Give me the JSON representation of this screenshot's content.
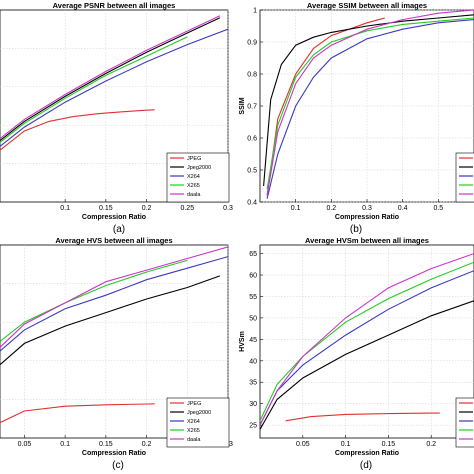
{
  "chart_data": [
    {
      "id": "a",
      "type": "line",
      "title": "Average PSNR between all images",
      "xlabel": "Compression Ratio",
      "ylabel": "",
      "panel_label": "(a)",
      "xlim": [
        0.02,
        0.3
      ],
      "ylim": [
        0,
        1
      ],
      "xticks": [
        "0.1",
        "0.15",
        "0.2",
        "0.25",
        "0.3"
      ],
      "xtick_values": [
        0.1,
        0.15,
        0.2,
        0.25,
        0.3
      ],
      "yticks": [],
      "grid": true,
      "legend": "bottom-right",
      "series": [
        {
          "name": "JPEG",
          "color": "#e03030",
          "x": [
            0.02,
            0.05,
            0.08,
            0.11,
            0.14,
            0.17,
            0.2,
            0.21
          ],
          "y": [
            0.27,
            0.37,
            0.42,
            0.445,
            0.46,
            0.47,
            0.478,
            0.48
          ]
        },
        {
          "name": "Jpeg2000",
          "color": "#000000",
          "x": [
            0.02,
            0.05,
            0.1,
            0.15,
            0.2,
            0.25,
            0.29
          ],
          "y": [
            0.32,
            0.42,
            0.55,
            0.67,
            0.78,
            0.88,
            0.96
          ]
        },
        {
          "name": "X264",
          "color": "#3a3ac0",
          "x": [
            0.02,
            0.05,
            0.1,
            0.15,
            0.2,
            0.25,
            0.3
          ],
          "y": [
            0.29,
            0.39,
            0.52,
            0.63,
            0.73,
            0.82,
            0.9
          ]
        },
        {
          "name": "X265",
          "color": "#22cc22",
          "x": [
            0.02,
            0.05,
            0.1,
            0.15,
            0.2,
            0.25
          ],
          "y": [
            0.31,
            0.41,
            0.54,
            0.66,
            0.76,
            0.86
          ]
        },
        {
          "name": "daala",
          "color": "#cc33cc",
          "x": [
            0.02,
            0.05,
            0.1,
            0.15,
            0.2,
            0.25,
            0.29
          ],
          "y": [
            0.33,
            0.43,
            0.56,
            0.68,
            0.79,
            0.89,
            0.97
          ]
        }
      ]
    },
    {
      "id": "b",
      "type": "line",
      "title": "Average SSIM between all images",
      "xlabel": "Compression Ratio",
      "ylabel": "SSIM",
      "panel_label": "(b)",
      "xlim": [
        0,
        0.6
      ],
      "ylim": [
        0.4,
        1
      ],
      "xticks": [
        "0.1",
        "0.2",
        "0.3",
        "0.4",
        "0.5"
      ],
      "xtick_values": [
        0.1,
        0.2,
        0.3,
        0.4,
        0.5
      ],
      "yticks": [
        "0.4",
        "0.5",
        "0.6",
        "0.7",
        "0.8",
        "0.9",
        "1"
      ],
      "ytick_values": [
        0.4,
        0.5,
        0.6,
        0.7,
        0.8,
        0.9,
        1.0
      ],
      "grid": true,
      "legend": "bottom-right",
      "series": [
        {
          "name": "JPEG",
          "color": "#e03030",
          "x": [
            0.02,
            0.05,
            0.1,
            0.15,
            0.2,
            0.3,
            0.35
          ],
          "y": [
            0.42,
            0.66,
            0.8,
            0.88,
            0.92,
            0.96,
            0.975
          ]
        },
        {
          "name": "Jpeg2000",
          "color": "#000000",
          "x": [
            0.01,
            0.03,
            0.06,
            0.1,
            0.15,
            0.2,
            0.3,
            0.4,
            0.5,
            0.6
          ],
          "y": [
            0.45,
            0.72,
            0.83,
            0.89,
            0.915,
            0.93,
            0.95,
            0.965,
            0.975,
            0.985
          ]
        },
        {
          "name": "X264",
          "color": "#3a3ac0",
          "x": [
            0.02,
            0.05,
            0.1,
            0.15,
            0.2,
            0.3,
            0.4,
            0.5,
            0.6
          ],
          "y": [
            0.41,
            0.55,
            0.7,
            0.79,
            0.85,
            0.91,
            0.94,
            0.96,
            0.97
          ]
        },
        {
          "name": "X265",
          "color": "#22cc22",
          "x": [
            0.02,
            0.05,
            0.1,
            0.15,
            0.2,
            0.3,
            0.4,
            0.5,
            0.6
          ],
          "y": [
            0.44,
            0.64,
            0.79,
            0.86,
            0.9,
            0.935,
            0.955,
            0.965,
            0.975
          ]
        },
        {
          "name": "daala",
          "color": "#cc33cc",
          "x": [
            0.02,
            0.05,
            0.1,
            0.15,
            0.2,
            0.3,
            0.4,
            0.5,
            0.6
          ],
          "y": [
            0.42,
            0.62,
            0.77,
            0.85,
            0.89,
            0.94,
            0.97,
            0.99,
            1.0
          ]
        }
      ]
    },
    {
      "id": "c",
      "type": "line",
      "title": "Average HVS between all images",
      "xlabel": "Compression Ratio",
      "ylabel": "",
      "panel_label": "(c)",
      "xlim": [
        0.02,
        0.3
      ],
      "ylim": [
        0,
        1
      ],
      "xticks": [
        "0.05",
        "0.1",
        "0.15",
        "0.2",
        "0.25",
        "0.3"
      ],
      "xtick_values": [
        0.05,
        0.1,
        0.15,
        0.2,
        0.25,
        0.3
      ],
      "yticks": [],
      "grid": true,
      "legend": "bottom-right",
      "series": [
        {
          "name": "JPEG",
          "color": "#e03030",
          "x": [
            0.02,
            0.05,
            0.1,
            0.15,
            0.2,
            0.21
          ],
          "y": [
            0.08,
            0.14,
            0.165,
            0.172,
            0.176,
            0.177
          ]
        },
        {
          "name": "Jpeg2000",
          "color": "#000000",
          "x": [
            0.02,
            0.05,
            0.1,
            0.15,
            0.2,
            0.25,
            0.29
          ],
          "y": [
            0.38,
            0.49,
            0.58,
            0.65,
            0.72,
            0.78,
            0.84
          ]
        },
        {
          "name": "X264",
          "color": "#3a3ac0",
          "x": [
            0.02,
            0.05,
            0.1,
            0.15,
            0.2,
            0.25,
            0.3
          ],
          "y": [
            0.45,
            0.56,
            0.67,
            0.74,
            0.82,
            0.88,
            0.94
          ]
        },
        {
          "name": "X265",
          "color": "#22cc22",
          "x": [
            0.02,
            0.05,
            0.1,
            0.15,
            0.2,
            0.25
          ],
          "y": [
            0.5,
            0.6,
            0.7,
            0.79,
            0.86,
            0.92
          ]
        },
        {
          "name": "daala",
          "color": "#cc33cc",
          "x": [
            0.02,
            0.05,
            0.1,
            0.15,
            0.2,
            0.25,
            0.3
          ],
          "y": [
            0.47,
            0.59,
            0.7,
            0.81,
            0.87,
            0.93,
            0.99
          ]
        }
      ]
    },
    {
      "id": "d",
      "type": "line",
      "title": "Average HVSm between all images",
      "xlabel": "Compression Ratio",
      "ylabel": "HVSm",
      "panel_label": "(d)",
      "xlim": [
        0,
        0.25
      ],
      "ylim": [
        22,
        67
      ],
      "xticks": [
        "0.05",
        "0.1",
        "0.15",
        "0.2"
      ],
      "xtick_values": [
        0.05,
        0.1,
        0.15,
        0.2
      ],
      "yticks": [
        "25",
        "30",
        "35",
        "40",
        "45",
        "50",
        "55",
        "60",
        "65"
      ],
      "ytick_values": [
        25,
        30,
        35,
        40,
        45,
        50,
        55,
        60,
        65
      ],
      "grid": true,
      "legend": "bottom-right",
      "series": [
        {
          "name": "JPEG",
          "color": "#e03030",
          "x": [
            0.03,
            0.06,
            0.1,
            0.15,
            0.2,
            0.21
          ],
          "y": [
            26,
            27,
            27.5,
            27.7,
            27.8,
            27.8
          ]
        },
        {
          "name": "Jpeg2000",
          "color": "#000000",
          "x": [
            0.0,
            0.02,
            0.05,
            0.1,
            0.15,
            0.2,
            0.25
          ],
          "y": [
            24,
            31,
            36,
            41.5,
            46,
            50.5,
            54
          ]
        },
        {
          "name": "X264",
          "color": "#3a3ac0",
          "x": [
            0.0,
            0.02,
            0.05,
            0.1,
            0.15,
            0.2,
            0.25
          ],
          "y": [
            25,
            33,
            39,
            46,
            52,
            57,
            61
          ]
        },
        {
          "name": "X265",
          "color": "#22cc22",
          "x": [
            0.0,
            0.02,
            0.05,
            0.1,
            0.15,
            0.2,
            0.25
          ],
          "y": [
            26,
            34.5,
            41,
            49,
            54.5,
            59,
            63
          ]
        },
        {
          "name": "daala",
          "color": "#cc33cc",
          "x": [
            0.0,
            0.02,
            0.05,
            0.1,
            0.15,
            0.2,
            0.25
          ],
          "y": [
            25,
            33,
            41,
            50,
            57,
            61.5,
            65
          ]
        }
      ]
    }
  ]
}
